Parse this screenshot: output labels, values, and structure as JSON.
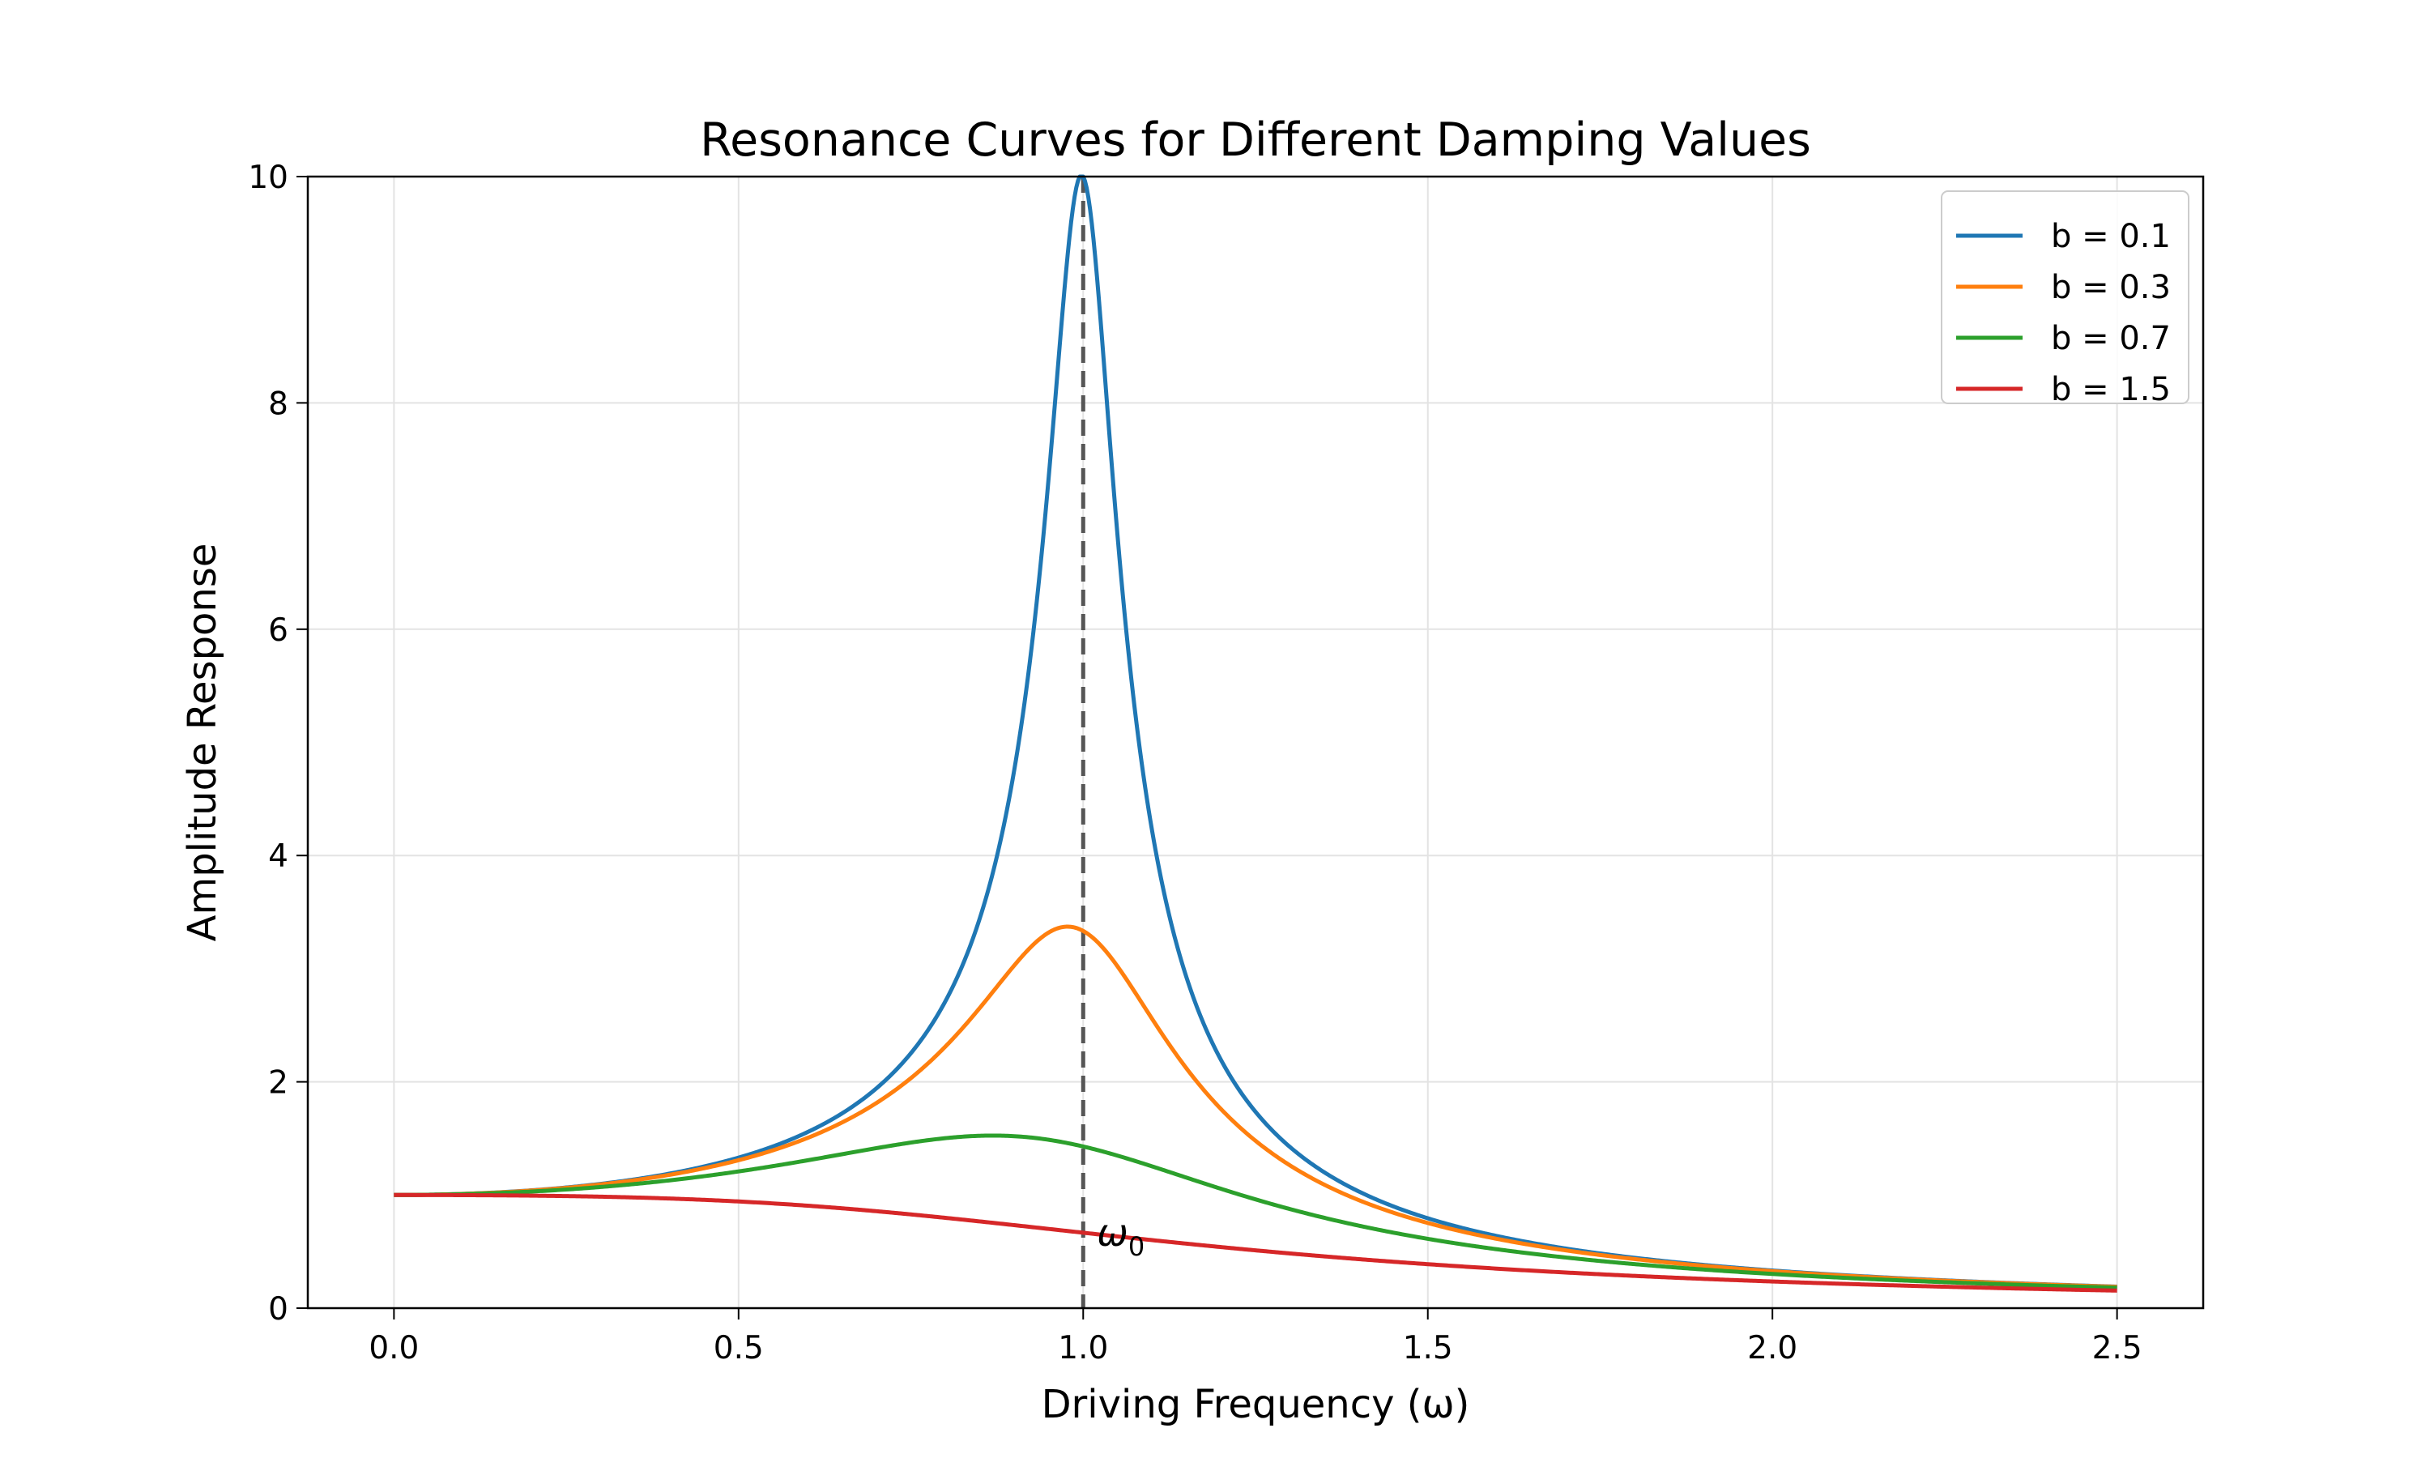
{
  "chart_data": {
    "type": "line",
    "title": "Resonance Curves for Different Damping Values",
    "xlabel": "Driving Frequency (ω)",
    "ylabel": "Amplitude Response",
    "xlim": [
      -0.125,
      2.625
    ],
    "ylim": [
      0,
      10
    ],
    "xticks": [
      "0.0",
      "0.5",
      "1.0",
      "1.5",
      "2.0",
      "2.5"
    ],
    "yticks": [
      "0",
      "2",
      "4",
      "6",
      "8",
      "10"
    ],
    "grid": true,
    "legend_position": "top-right",
    "x_range": [
      0,
      2.5
    ],
    "natural_frequency": 1.0,
    "series": [
      {
        "name": "b = 0.1",
        "damping": 0.1,
        "color": "#1f77b4",
        "peak": {
          "x": 1.0,
          "y": 10.0
        }
      },
      {
        "name": "b = 0.3",
        "damping": 0.3,
        "color": "#ff7f0e",
        "peak": {
          "x": 0.98,
          "y": 3.37
        }
      },
      {
        "name": "b = 0.7",
        "damping": 0.7,
        "color": "#2ca02c",
        "peak": {
          "x": 0.86,
          "y": 1.52
        }
      },
      {
        "name": "b = 1.5",
        "damping": 1.5,
        "color": "#d62728",
        "peak": {
          "x": 0.0,
          "y": 1.0
        }
      }
    ],
    "reference_line": {
      "x": 1.0,
      "style": "dashed",
      "color": "#555555"
    },
    "annotation": {
      "text": "ω",
      "subscript": "0",
      "x": 1.02,
      "y": 0.55
    }
  }
}
